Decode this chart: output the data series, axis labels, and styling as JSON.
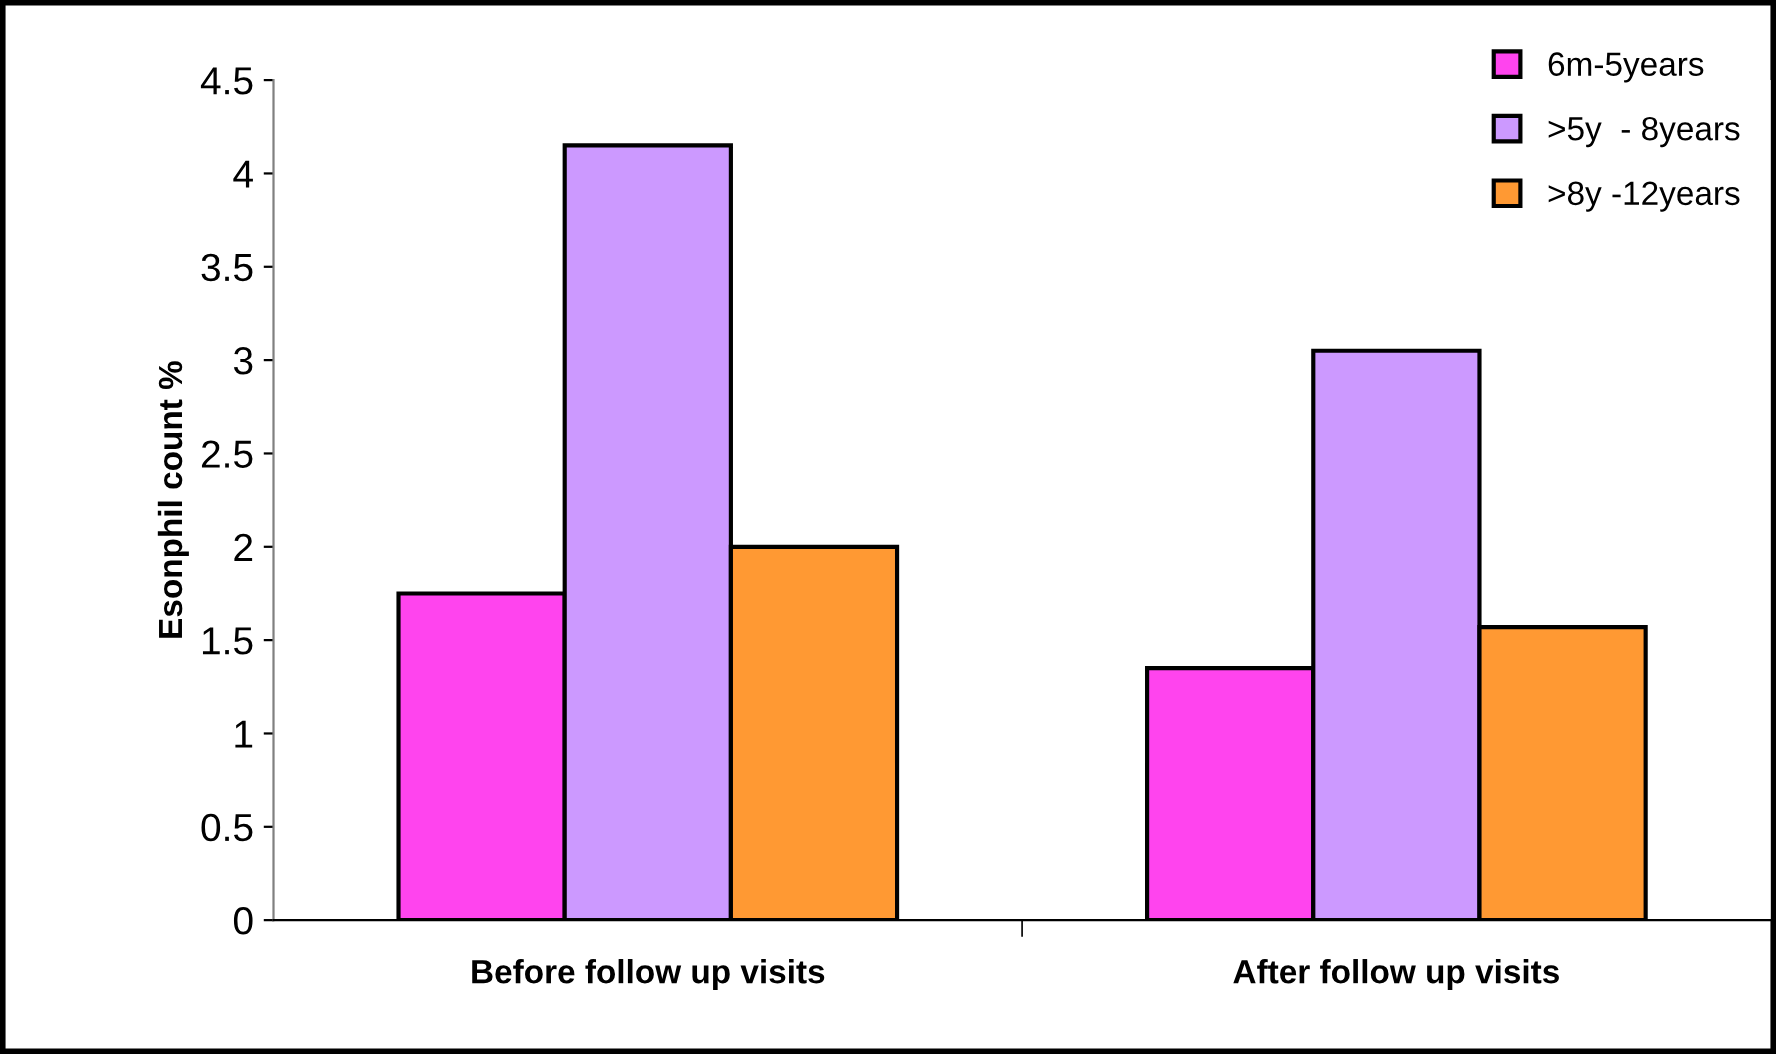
{
  "chart_data": {
    "type": "bar",
    "ylabel": "Esonphil count %",
    "categories": [
      "Before follow up visits",
      "After follow up visits"
    ],
    "series": [
      {
        "name": "6m-5years",
        "color": "#ff44ee",
        "values": [
          1.75,
          1.35
        ]
      },
      {
        "name": ">5y  - 8years",
        "color": "#cc99ff",
        "values": [
          4.15,
          3.05
        ]
      },
      {
        "name": ">8y -12years",
        "color": "#ff9933",
        "values": [
          2.0,
          1.57
        ]
      }
    ],
    "ylim": [
      0,
      4.5
    ],
    "yticks": [
      0,
      0.5,
      1,
      1.5,
      2,
      2.5,
      3,
      3.5,
      4,
      4.5
    ],
    "grid": false,
    "legend": "top right"
  }
}
